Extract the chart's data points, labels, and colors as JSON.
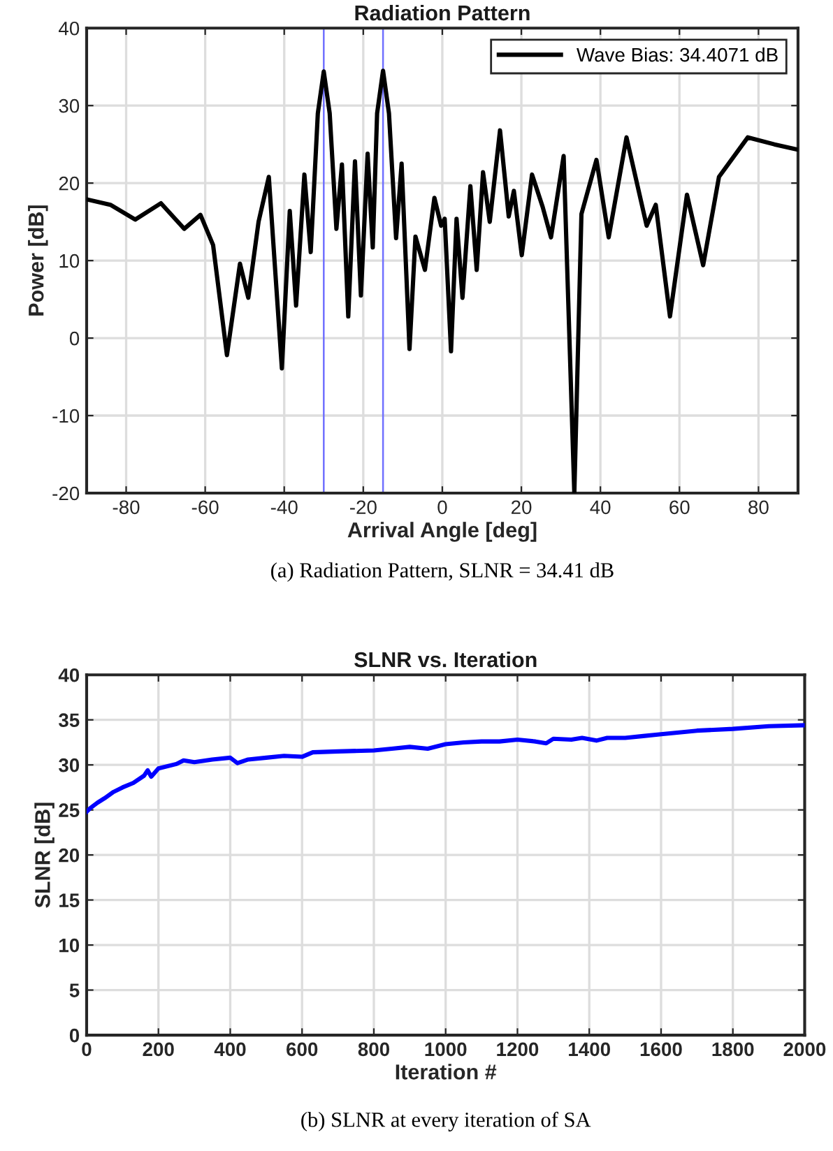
{
  "chart_data": [
    {
      "type": "line",
      "title": "Radiation Pattern",
      "xlabel": "Arrival Angle [deg]",
      "ylabel": "Power [dB]",
      "annotations": [
        "(a) Radiation Pattern, SLNR = 34.41 dB"
      ],
      "xlim": [
        -90,
        90
      ],
      "xticks": [
        -80,
        -60,
        -40,
        -20,
        0,
        20,
        40,
        60,
        80
      ],
      "ylim": [
        -20,
        40
      ],
      "yticks": [
        -20,
        -10,
        0,
        10,
        20,
        30,
        40
      ],
      "grid": true,
      "legend": "top right",
      "marker": "none",
      "line_style": "solid",
      "ref_lines": [
        {
          "axis": "x",
          "value": -30,
          "label": null,
          "color": "#7070ff"
        },
        {
          "axis": "x",
          "value": -15,
          "label": null,
          "color": "#7070ff"
        }
      ],
      "series": [
        {
          "name": "Wave Bias: 34.4071 dB",
          "color": "#000000",
          "x": [
            -90,
            -84,
            -77.7,
            -71.2,
            -65.3,
            -61.2,
            -58,
            -54.5,
            -51.2,
            -49.1,
            -46.5,
            -43.9,
            -40.6,
            -38.6,
            -37,
            -34.9,
            -33.3,
            -31.5,
            -30,
            -28.5,
            -26.8,
            -25.4,
            -23.8,
            -22.1,
            -20.6,
            -18.9,
            -17.6,
            -16.5,
            -15,
            -13.5,
            -11.7,
            -10.3,
            -8.3,
            -6.8,
            -4.4,
            -2,
            -0.3,
            0.6,
            2.2,
            3.6,
            5.1,
            7.1,
            8.7,
            10.3,
            12,
            14.6,
            16.8,
            18.1,
            20.1,
            22.7,
            25.4,
            27.5,
            30.7,
            33.4,
            35.2,
            39,
            42.1,
            46.6,
            51.7,
            54,
            57.6,
            61.9,
            66,
            70,
            77.3,
            84,
            90
          ],
          "values": [
            17.9,
            17.2,
            15.3,
            17.4,
            14.1,
            15.9,
            12,
            -2.2,
            9.6,
            5.2,
            15,
            20.8,
            -3.9,
            16.4,
            4.2,
            21.1,
            11.1,
            29,
            34.4,
            29,
            14.1,
            22.4,
            2.8,
            22.8,
            5.5,
            23.8,
            11.7,
            29,
            34.5,
            29,
            12.9,
            22.5,
            -1.4,
            13.1,
            8.8,
            18.1,
            14.5,
            15.4,
            -1.7,
            15.4,
            5.2,
            19.6,
            8.8,
            21.4,
            15,
            26.8,
            15.7,
            19,
            10.7,
            21.1,
            16.9,
            13,
            23.5,
            -20,
            16,
            23,
            13,
            25.9,
            14.5,
            17.2,
            2.8,
            18.5,
            9.4,
            20.8,
            25.9,
            25,
            24.3
          ]
        }
      ]
    },
    {
      "type": "line",
      "title": "SLNR vs. Iteration",
      "xlabel": "Iteration #",
      "ylabel": "SLNR [dB]",
      "annotations": [
        "(b) SLNR at every iteration of SA"
      ],
      "xlim": [
        0,
        2000
      ],
      "xticks": [
        0,
        200,
        400,
        600,
        800,
        1000,
        1200,
        1400,
        1600,
        1800,
        2000
      ],
      "ylim": [
        0,
        40
      ],
      "yticks": [
        0,
        5,
        10,
        15,
        20,
        25,
        30,
        35,
        40
      ],
      "grid": true,
      "marker": "none",
      "line_style": "solid",
      "series": [
        {
          "color": "#0000ff",
          "x": [
            0,
            10,
            30,
            50,
            75,
            100,
            130,
            160,
            170,
            180,
            200,
            250,
            270,
            300,
            350,
            400,
            420,
            450,
            500,
            550,
            600,
            630,
            700,
            800,
            850,
            900,
            950,
            1000,
            1050,
            1100,
            1150,
            1200,
            1250,
            1280,
            1300,
            1350,
            1380,
            1420,
            1450,
            1500,
            1550,
            1600,
            1700,
            1800,
            1900,
            2000
          ],
          "values": [
            24.8,
            25.2,
            25.8,
            26.3,
            27,
            27.5,
            28,
            28.8,
            29.4,
            28.7,
            29.6,
            30.1,
            30.5,
            30.3,
            30.6,
            30.8,
            30.2,
            30.6,
            30.8,
            31.0,
            30.9,
            31.4,
            31.5,
            31.6,
            31.8,
            32.0,
            31.8,
            32.3,
            32.5,
            32.6,
            32.6,
            32.8,
            32.6,
            32.4,
            32.9,
            32.8,
            33.0,
            32.7,
            33.0,
            33.0,
            33.2,
            33.4,
            33.8,
            34.0,
            34.3,
            34.4
          ]
        }
      ]
    }
  ]
}
